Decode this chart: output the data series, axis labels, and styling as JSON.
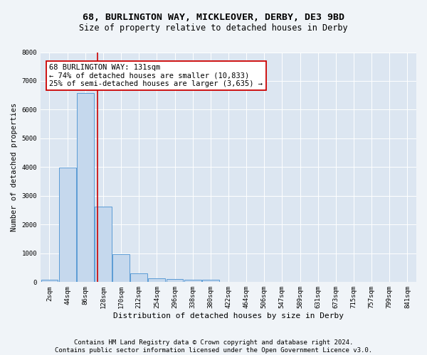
{
  "title1": "68, BURLINGTON WAY, MICKLEOVER, DERBY, DE3 9BD",
  "title2": "Size of property relative to detached houses in Derby",
  "xlabel": "Distribution of detached houses by size in Derby",
  "ylabel": "Number of detached properties",
  "bar_color": "#c5d8ed",
  "bar_edge_color": "#5b9bd5",
  "fig_bg_color": "#f0f4f8",
  "plot_bg_color": "#dce6f1",
  "grid_color": "#ffffff",
  "annotation_box_edge_color": "#cc0000",
  "vline_color": "#cc0000",
  "categories": [
    "2sqm",
    "44sqm",
    "86sqm",
    "128sqm",
    "170sqm",
    "212sqm",
    "254sqm",
    "296sqm",
    "338sqm",
    "380sqm",
    "422sqm",
    "464sqm",
    "506sqm",
    "547sqm",
    "589sqm",
    "631sqm",
    "673sqm",
    "715sqm",
    "757sqm",
    "799sqm",
    "841sqm"
  ],
  "bar_heights": [
    75,
    3980,
    6580,
    2620,
    960,
    310,
    120,
    100,
    85,
    70,
    0,
    0,
    0,
    0,
    0,
    0,
    0,
    0,
    0,
    0,
    0
  ],
  "ylim": [
    0,
    8000
  ],
  "yticks": [
    0,
    1000,
    2000,
    3000,
    4000,
    5000,
    6000,
    7000,
    8000
  ],
  "vline_x_index": 2.67,
  "annotation_line1": "68 BURLINGTON WAY: 131sqm",
  "annotation_line2": "← 74% of detached houses are smaller (10,833)",
  "annotation_line3": "25% of semi-detached houses are larger (3,635) →",
  "footnote": "Contains HM Land Registry data © Crown copyright and database right 2024.\nContains public sector information licensed under the Open Government Licence v3.0.",
  "title1_fontsize": 9.5,
  "title2_fontsize": 8.5,
  "xlabel_fontsize": 8,
  "ylabel_fontsize": 7.5,
  "tick_fontsize": 6.5,
  "annotation_fontsize": 7.5,
  "footnote_fontsize": 6.5
}
